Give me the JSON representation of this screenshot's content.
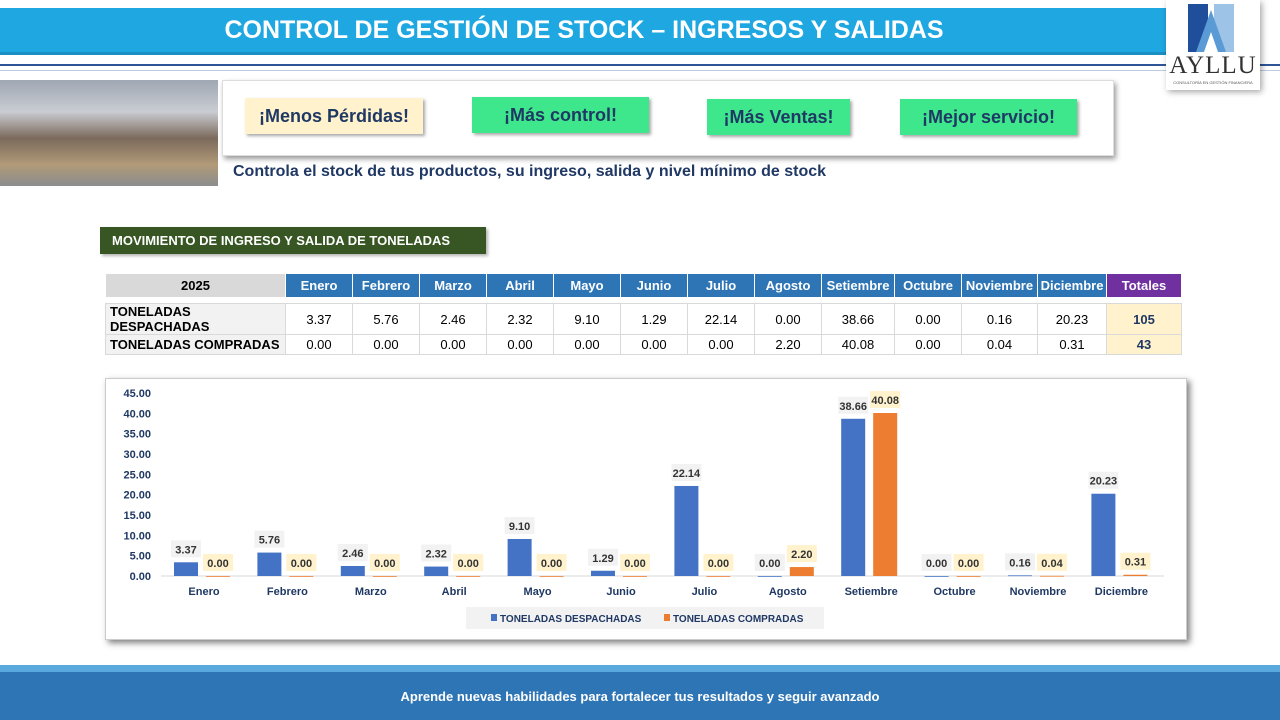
{
  "header": {
    "title": "CONTROL DE GESTIÓN DE STOCK – INGRESOS Y SALIDAS"
  },
  "logo": {
    "name": "AYLLU",
    "subtitle": "CONSULTORÍA EN GESTIÓN FINANCIERA"
  },
  "banner": {
    "pills": [
      "¡Menos Pérdidas!",
      "¡Más control!",
      "¡Más Ventas!",
      "¡Mejor servicio!"
    ],
    "tagline": "Controla el stock de tus productos, su ingreso, salida y nivel mínimo de stock"
  },
  "section_title": "MOVIMIENTO DE INGRESO Y SALIDA DE TONELADAS",
  "table": {
    "year": "2025",
    "months": [
      "Enero",
      "Febrero",
      "Marzo",
      "Abril",
      "Mayo",
      "Junio",
      "Julio",
      "Agosto",
      "Setiembre",
      "Octubre",
      "Noviembre",
      "Diciembre"
    ],
    "totals_label": "Totales",
    "rows": [
      {
        "label": "TONELADAS DESPACHADAS",
        "values": [
          "3.37",
          "5.76",
          "2.46",
          "2.32",
          "9.10",
          "1.29",
          "22.14",
          "0.00",
          "38.66",
          "0.00",
          "0.16",
          "20.23"
        ],
        "total": "105"
      },
      {
        "label": "TONELADAS COMPRADAS",
        "values": [
          "0.00",
          "0.00",
          "0.00",
          "0.00",
          "0.00",
          "0.00",
          "0.00",
          "2.20",
          "40.08",
          "0.00",
          "0.04",
          "0.31"
        ],
        "total": "43"
      }
    ]
  },
  "chart_data": {
    "type": "bar",
    "categories": [
      "Enero",
      "Febrero",
      "Marzo",
      "Abril",
      "Mayo",
      "Junio",
      "Julio",
      "Agosto",
      "Setiembre",
      "Octubre",
      "Noviembre",
      "Diciembre"
    ],
    "series": [
      {
        "name": "TONELADAS DESPACHADAS",
        "color": "#4472c4",
        "values": [
          3.37,
          5.76,
          2.46,
          2.32,
          9.1,
          1.29,
          22.14,
          0.0,
          38.66,
          0.0,
          0.16,
          20.23
        ]
      },
      {
        "name": "TONELADAS COMPRADAS",
        "color": "#ed7d31",
        "values": [
          0.0,
          0.0,
          0.0,
          0.0,
          0.0,
          0.0,
          0.0,
          2.2,
          40.08,
          0.0,
          0.04,
          0.31
        ]
      }
    ],
    "ylim": [
      0,
      45
    ],
    "yticks": [
      "0.00",
      "5.00",
      "10.00",
      "15.00",
      "20.00",
      "25.00",
      "30.00",
      "35.00",
      "40.00",
      "45.00"
    ],
    "legend": "bottom"
  },
  "footer": {
    "text": "Aprende nuevas habilidades para fortalecer tus resultados y seguir avanzado"
  }
}
